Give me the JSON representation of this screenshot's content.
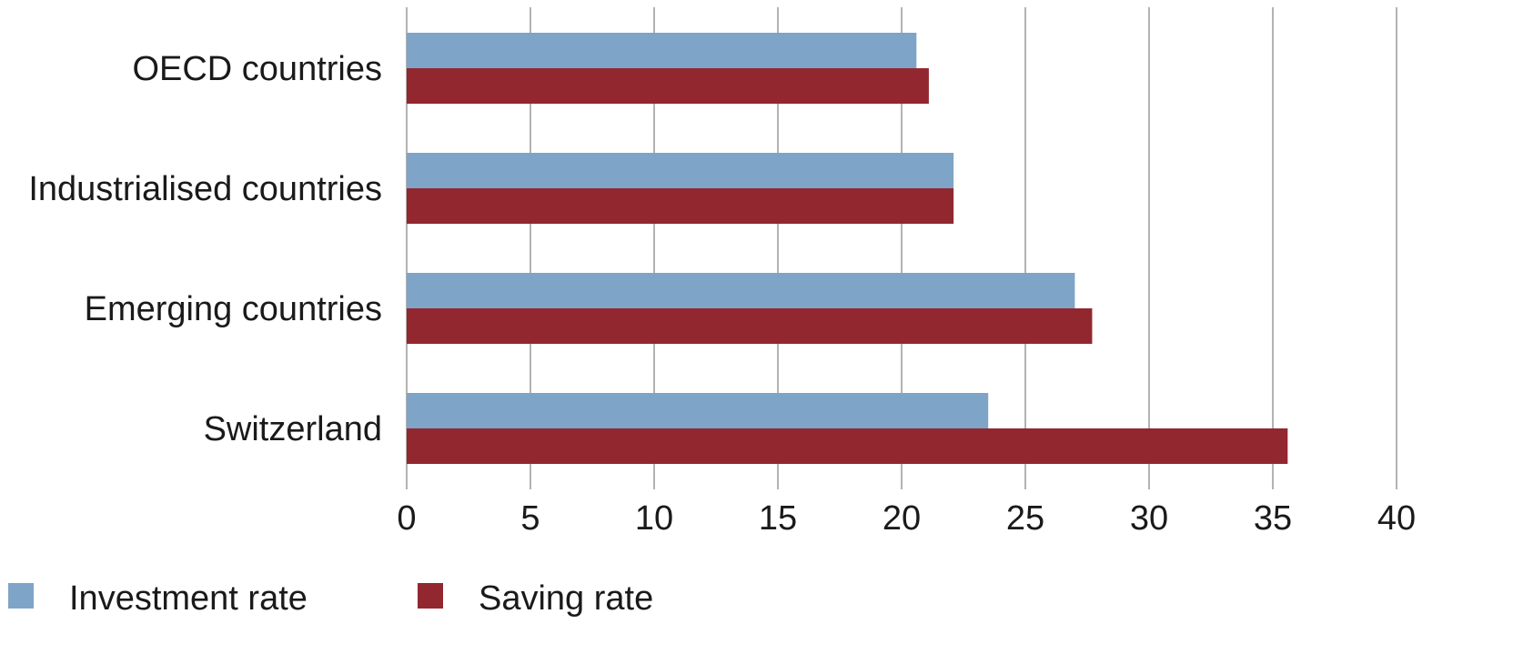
{
  "chart_data": {
    "type": "bar",
    "orientation": "horizontal",
    "categories": [
      "OECD countries",
      "Industrialised countries",
      "Emerging countries",
      "Switzerland"
    ],
    "series": [
      {
        "name": "Investment rate",
        "color": "#7ea4c7",
        "values": [
          20.6,
          22.1,
          27.0,
          23.5
        ]
      },
      {
        "name": "Saving rate",
        "color": "#92272f",
        "values": [
          21.1,
          22.1,
          27.7,
          35.6
        ]
      }
    ],
    "xlim": [
      0,
      40
    ],
    "ticks": [
      "0",
      "5",
      "10",
      "15",
      "20",
      "25",
      "30",
      "35",
      "40"
    ],
    "grid": true,
    "legend_position": "bottom-left",
    "title": "",
    "xlabel": "",
    "ylabel": ""
  }
}
